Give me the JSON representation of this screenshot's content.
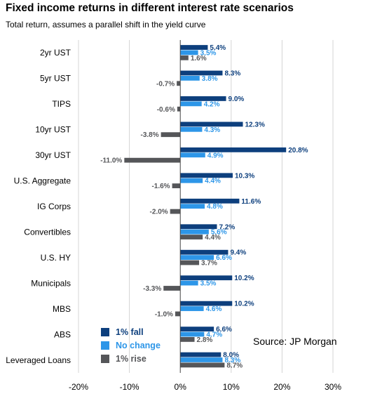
{
  "title": "Fixed income returns in different interest rate scenarios",
  "subtitle": "Total return, assumes a parallel shift in the yield curve",
  "source": "Source: JP Morgan",
  "colors": {
    "fall": "#0d3f7d",
    "no_change": "#2d96e8",
    "rise": "#555659",
    "grid": "#d4d4d4",
    "axis": "#444444"
  },
  "chart_data": {
    "type": "bar",
    "orientation": "horizontal",
    "title": "Fixed income returns in different interest rate scenarios",
    "subtitle": "Total return, assumes a parallel shift in the yield curve",
    "categories": [
      "2yr UST",
      "5yr UST",
      "TIPS",
      "10yr UST",
      "30yr UST",
      "U.S. Aggregate",
      "IG Corps",
      "Convertibles",
      "U.S. HY",
      "Municipals",
      "MBS",
      "ABS",
      "Leveraged Loans"
    ],
    "series": [
      {
        "name": "1% fall",
        "values": [
          5.4,
          8.3,
          9.0,
          12.3,
          20.8,
          10.3,
          11.6,
          7.2,
          9.4,
          10.2,
          10.2,
          6.6,
          8.0
        ],
        "labels": [
          "5.4%",
          "8.3%",
          "9.0%",
          "12.3%",
          "20.8%",
          "10.3%",
          "11.6%",
          "7.2%",
          "9.4%",
          "10.2%",
          "10.2%",
          "6.6%",
          "8.0%"
        ]
      },
      {
        "name": "No change",
        "values": [
          3.5,
          3.8,
          4.2,
          4.3,
          4.9,
          4.4,
          4.8,
          5.6,
          6.6,
          3.5,
          4.6,
          4.7,
          8.3
        ],
        "labels": [
          "3.5%",
          "3.8%",
          "4.2%",
          "4.3%",
          "4.9%",
          "4.4%",
          "4.8%",
          "5.6%",
          "6.6%",
          "3.5%",
          "4.6%",
          "4.7%",
          "8.3%"
        ]
      },
      {
        "name": "1% rise",
        "values": [
          1.6,
          -0.7,
          -0.6,
          -3.8,
          -11.0,
          -1.6,
          -2.0,
          4.4,
          3.7,
          -3.3,
          -1.0,
          2.8,
          8.7
        ],
        "labels": [
          "1.6%",
          "-0.7%",
          "-0.6%",
          "-3.8%",
          "-11.0%",
          "-1.6%",
          "-2.0%",
          "4.4%",
          "3.7%",
          "-3.3%",
          "-1.0%",
          "2.8%",
          "8.7%"
        ]
      }
    ],
    "xlim": [
      -20,
      30
    ],
    "x_ticks": [
      -20,
      -10,
      0,
      10,
      20,
      30
    ],
    "x_tick_labels": [
      "-20%",
      "-10%",
      "0%",
      "10%",
      "20%",
      "30%"
    ],
    "grid": true,
    "legend_position": "bottom-left"
  }
}
